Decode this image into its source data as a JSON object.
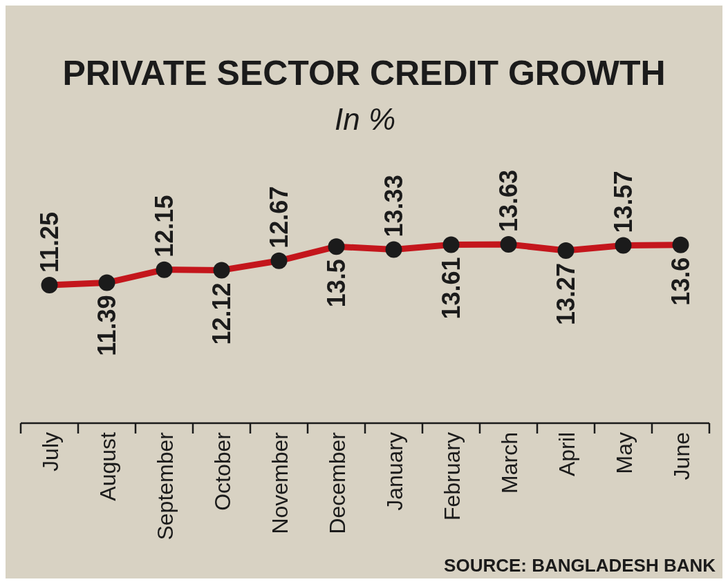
{
  "chart_data": {
    "type": "line",
    "title": "PRIVATE SECTOR CREDIT GROWTH",
    "subtitle": "In %",
    "categories": [
      "July",
      "August",
      "September",
      "October",
      "November",
      "December",
      "January",
      "February",
      "March",
      "April",
      "May",
      "June"
    ],
    "series": [
      {
        "color": "#c4161c",
        "values": [
          11.25,
          11.39,
          12.15,
          12.12,
          12.67,
          13.5,
          13.33,
          13.61,
          13.63,
          13.27,
          13.57,
          13.6
        ]
      }
    ],
    "data_labels": true,
    "marker": "circle",
    "line_style": "solid",
    "annotations": [
      "SOURCE: BANGLADESH BANK"
    ]
  }
}
